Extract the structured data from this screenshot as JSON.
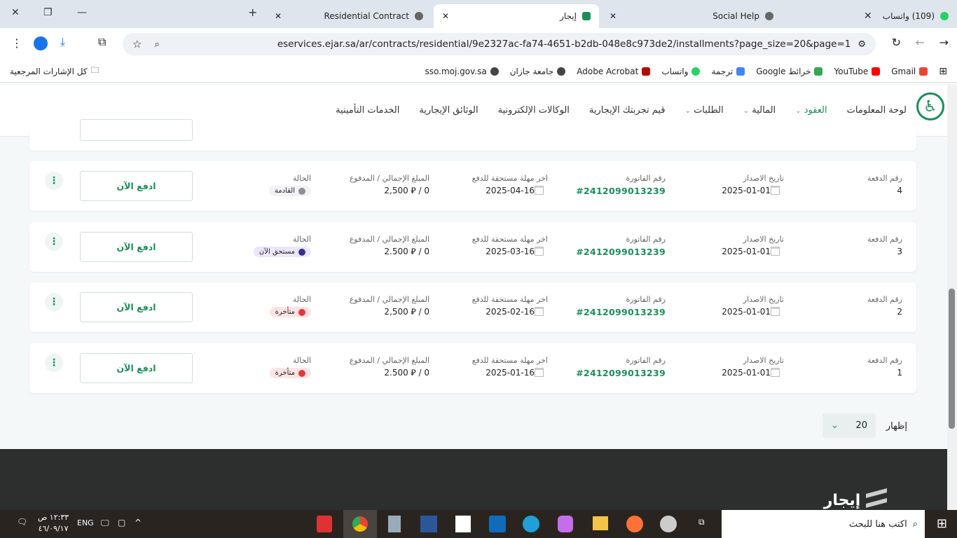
{
  "browser": {
    "tabs": [
      {
        "title": "(109) واتساب",
        "icon": "whatsapp-icon"
      },
      {
        "title": "Social Help",
        "icon": "globe-icon"
      },
      {
        "title": "إيجار",
        "icon": "ejar-icon",
        "active": true
      },
      {
        "title": "Residential Contract",
        "icon": "globe-icon"
      }
    ],
    "url": "eservices.ejar.sa/ar/contracts/residential/9e2327ac-fa74-4651-b2db-048e8c973de2/installments?page_size=20&page=1",
    "bookmarks": [
      "Gmail",
      "YouTube",
      "خرائط Google",
      "ترجمة",
      "واتساب",
      "Adobe Acrobat",
      "جامعة جازان",
      "sso.moj.gov.sa"
    ],
    "all_bookmarks": "كل الإشارات المرجعية"
  },
  "nav": {
    "items": [
      "لوحة المعلومات",
      "العقود",
      "المالية",
      "الطلبات",
      "قيم تجربتك الإيجارية",
      "الوكالات الإلكترونية",
      "الوثائق الإيجارية",
      "الخدمات التأمينية"
    ],
    "active": "العقود"
  },
  "labels": {
    "number": "رقم الدفعة",
    "issue": "تاريخ الاصدار",
    "invoice": "رقم الفاتورة",
    "due": "اخر مهلة مستحقة للدفع",
    "amount": "المبلغ الإجمالي / المدفوع",
    "status": "الحالة",
    "pay": "ادفع الآن"
  },
  "installments": [
    {
      "number": "4",
      "issue": "2025-01-01",
      "invoice": "#2412099013239",
      "due": "2025-04-16",
      "amount": "2,500 ⃁ / 0",
      "status": "القادمة",
      "status_color": "#8e8e93",
      "status_bg": "#f2f2f4"
    },
    {
      "number": "3",
      "issue": "2025-01-01",
      "invoice": "#2412099013239",
      "due": "2025-03-16",
      "amount": "2.500 ⃁ / 0",
      "status": "مستحق الآن",
      "status_color": "#3a2f8f",
      "status_bg": "#ebe6fb"
    },
    {
      "number": "2",
      "issue": "2025-01-01",
      "invoice": "#2412099013239",
      "due": "2025-02-16",
      "amount": "2,500 ⃁ / 0",
      "status": "متأخرة",
      "status_color": "#e53935",
      "status_bg": "#fde4e4"
    },
    {
      "number": "1",
      "issue": "2025-01-01",
      "invoice": "#2412099013239",
      "due": "2025-01-16",
      "amount": "2.500 ⃁ / 0",
      "status": "متأخرة",
      "status_color": "#e53935",
      "status_bg": "#fde4e4"
    }
  ],
  "pagination": {
    "label": "إظهار",
    "page_size": "20"
  },
  "footer": {
    "logo": "إيجار"
  },
  "taskbar": {
    "search_placeholder": "اكتب هنا للبحث",
    "lang": "ENG",
    "time": "١٢:٣٣ ص",
    "date": "٤٦/٠٩/١٧"
  }
}
